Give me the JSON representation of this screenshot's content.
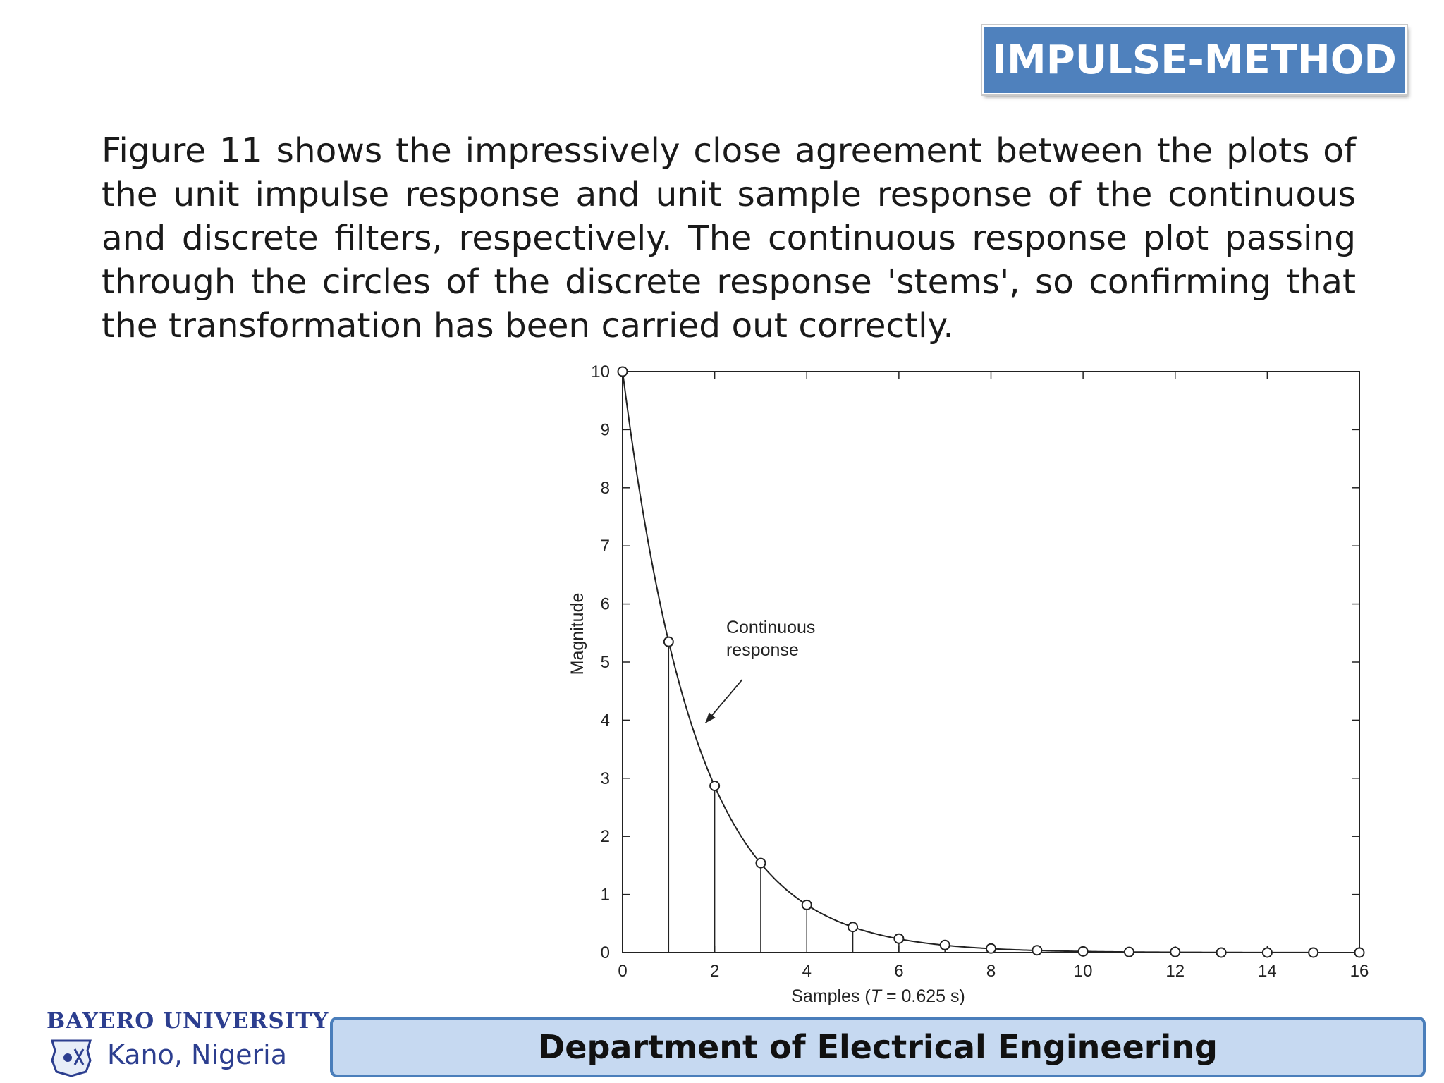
{
  "slide": {
    "title": "IMPULSE-METHOD",
    "body": "Figure 11 shows the impressively close agreement between the plots of the unit impulse response and unit sample response of the continuous and discrete filters, respectively. The continuous response plot passing through the circles of the discrete response 'stems', so confirming that the transformation has been carried out correctly.",
    "footer": "Department of Electrical Engineering"
  },
  "logo": {
    "line1": "BAYERO UNIVERSITY",
    "line2": "Kano, Nigeria"
  },
  "chart_data": {
    "type": "line",
    "xlabel_prefix": "Samples  (",
    "xlabel_var": "T",
    "xlabel_suffix": " = 0.625 s)",
    "ylabel": "Magnitude",
    "xlim": [
      0,
      16
    ],
    "ylim": [
      0,
      10
    ],
    "xticks": [
      0,
      2,
      4,
      6,
      8,
      10,
      12,
      14,
      16
    ],
    "yticks": [
      0,
      1,
      2,
      3,
      4,
      5,
      6,
      7,
      8,
      9,
      10
    ],
    "grid": false,
    "annotation": {
      "line1": "Continuous",
      "line2": "response"
    },
    "continuous": {
      "amplitude": 10,
      "decay_per_sample": 0.625
    },
    "discrete_samples": {
      "x": [
        0,
        1,
        2,
        3,
        4,
        5,
        6,
        7,
        8,
        9,
        10,
        11,
        12,
        13,
        14,
        15,
        16
      ],
      "y": [
        10,
        5.35,
        2.87,
        1.54,
        0.82,
        0.44,
        0.24,
        0.13,
        0.07,
        0.04,
        0.02,
        0.01,
        0.01,
        0.0,
        0.0,
        0.0,
        0.0
      ]
    }
  },
  "colors": {
    "title_bg": "#4f81bd",
    "footer_bg": "#c6d9f1",
    "footer_border": "#4a7ebb",
    "logo": "#2c3e8f"
  }
}
